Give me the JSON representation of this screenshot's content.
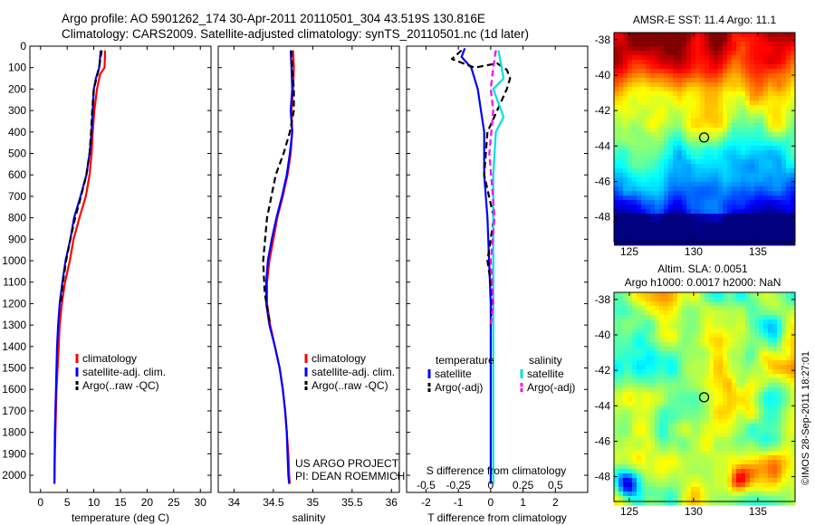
{
  "header": {
    "line1": "Argo profile: AO 5901262_174 30-Apr-2011 20110501_304 43.519S 130.816E",
    "line2": "Climatology: CARS2009. Satellite-adjusted climatology: synTS_20110501.nc (1d later)"
  },
  "credits": {
    "line1": "US ARGO PROJECT",
    "line2": "PI: DEAN ROEMMICH"
  },
  "watermark": "©IMOS 28-Sep-2011 18:27:01",
  "colors": {
    "climatology": "#ff0000",
    "satellite": "#0000ff",
    "argo": "#000000",
    "sal_satellite": "#00e0e0",
    "sal_argo": "#ff00ff"
  },
  "chart_data": [
    {
      "id": "temperature_profile",
      "type": "line",
      "xlabel": "temperature (deg C)",
      "xlim": [
        -2,
        32
      ],
      "ylim": [
        2080,
        0
      ],
      "xticks": [
        0,
        5,
        10,
        15,
        20,
        25,
        30
      ],
      "yticks": [
        0,
        100,
        200,
        300,
        400,
        500,
        600,
        700,
        800,
        900,
        1000,
        1100,
        1200,
        1300,
        1400,
        1500,
        1600,
        1700,
        1800,
        1900,
        2000
      ],
      "legend": [
        "climatology",
        "satellite-adj. clim.",
        "Argo(..raw -QC)"
      ],
      "series": [
        {
          "name": "climatology",
          "style": "solid",
          "color": "#ff0000",
          "x": [
            12.1,
            12.1,
            12.0,
            11.2,
            10.6,
            10.1,
            9.8,
            9.6,
            9.2,
            8.5,
            7.3,
            6.2,
            5.5,
            4.6,
            4.0,
            3.6,
            3.4,
            3.2,
            3.0,
            2.9,
            2.8,
            2.7,
            2.6
          ],
          "y": [
            20,
            50,
            100,
            130,
            200,
            300,
            400,
            500,
            600,
            700,
            800,
            900,
            1000,
            1100,
            1200,
            1300,
            1400,
            1500,
            1600,
            1700,
            1800,
            1900,
            2040
          ]
        },
        {
          "name": "satellite-adj. clim.",
          "style": "solid",
          "color": "#0000ff",
          "x": [
            11.3,
            11.2,
            11.0,
            10.4,
            10.0,
            9.8,
            9.6,
            9.2,
            8.6,
            7.5,
            6.3,
            5.6,
            4.7,
            4.1,
            3.6,
            3.3,
            3.1,
            3.0,
            2.9,
            2.8,
            2.7,
            2.6
          ],
          "y": [
            20,
            50,
            100,
            150,
            200,
            300,
            400,
            500,
            600,
            700,
            800,
            900,
            1000,
            1100,
            1200,
            1300,
            1400,
            1500,
            1600,
            1700,
            1800,
            2040
          ]
        },
        {
          "name": "Argo(..raw -QC)",
          "style": "dashed",
          "color": "#000000",
          "x": [
            11.5,
            11.3,
            11.0,
            10.5,
            10.0,
            9.7,
            9.5,
            9.2,
            8.6,
            7.6,
            6.5,
            5.6,
            4.8,
            4.2,
            3.8
          ],
          "y": [
            20,
            50,
            100,
            150,
            200,
            300,
            400,
            500,
            600,
            700,
            800,
            900,
            1000,
            1100,
            1200
          ]
        }
      ]
    },
    {
      "id": "salinity_profile",
      "type": "line",
      "xlabel": "salinity",
      "xlim": [
        33.8,
        36.1
      ],
      "ylim": [
        2080,
        0
      ],
      "xticks": [
        34,
        34.5,
        35,
        35.5,
        36
      ],
      "xticklabels": [
        "34",
        "34.5",
        "35",
        "35.5",
        "36"
      ],
      "legend": [
        "climatology",
        "satellite-adj. clim.",
        "Argo(..raw -QC)"
      ],
      "series": [
        {
          "name": "climatology",
          "style": "solid",
          "color": "#ff0000",
          "x": [
            34.75,
            34.76,
            34.75,
            34.73,
            34.74,
            34.72,
            34.68,
            34.62,
            34.55,
            34.5,
            34.45,
            34.42,
            34.42,
            34.46,
            34.52,
            34.58,
            34.62,
            34.65,
            34.67,
            34.69,
            34.7,
            34.71
          ],
          "y": [
            20,
            100,
            200,
            300,
            400,
            500,
            600,
            700,
            800,
            900,
            1000,
            1100,
            1200,
            1300,
            1400,
            1500,
            1600,
            1700,
            1800,
            1900,
            2000,
            2040
          ]
        },
        {
          "name": "satellite-adj. clim.",
          "style": "solid",
          "color": "#0000ff",
          "x": [
            34.72,
            34.73,
            34.74,
            34.72,
            34.74,
            34.71,
            34.67,
            34.61,
            34.54,
            34.48,
            34.43,
            34.41,
            34.41,
            34.45,
            34.52,
            34.58,
            34.62,
            34.65,
            34.67,
            34.68,
            34.69,
            34.7
          ],
          "y": [
            20,
            100,
            200,
            300,
            400,
            500,
            600,
            700,
            800,
            900,
            1000,
            1100,
            1200,
            1300,
            1400,
            1500,
            1600,
            1700,
            1800,
            1900,
            2000,
            2040
          ]
        },
        {
          "name": "Argo(..raw -QC)",
          "style": "dashed",
          "color": "#000000",
          "x": [
            34.73,
            34.73,
            34.74,
            34.76,
            34.76,
            34.71,
            34.63,
            34.53,
            34.42,
            34.37,
            34.39,
            34.46
          ],
          "y": [
            20,
            50,
            100,
            200,
            300,
            400,
            500,
            600,
            800,
            1000,
            1150,
            1300
          ]
        }
      ]
    },
    {
      "id": "difference_profile",
      "type": "line",
      "xlabel": "T difference from climatology",
      "xlabel_top": "S difference from climatology",
      "xlim": [
        -2.6,
        3.0
      ],
      "ylim": [
        2080,
        0
      ],
      "xticks": [
        -2,
        -1,
        0,
        1,
        2
      ],
      "xticks_top": [
        -0.5,
        -0.25,
        0,
        0.25,
        0.5
      ],
      "legend_left_title": "temperature",
      "legend_left": [
        "satellite",
        "Argo(-adj)"
      ],
      "legend_right_title": "salinity",
      "legend_right": [
        "satellite",
        "Argo(-adj)"
      ],
      "series": [
        {
          "name": "satellite",
          "group": "temperature",
          "style": "solid",
          "color": "#0000ff",
          "x": [
            -0.8,
            -0.9,
            -0.6,
            -0.4,
            -0.3,
            -0.2,
            -0.2,
            -0.1,
            -0.05,
            0,
            0,
            0
          ],
          "y": [
            10,
            50,
            100,
            200,
            300,
            400,
            600,
            800,
            1000,
            1200,
            1600,
            2040
          ]
        },
        {
          "name": "Argo(-adj)",
          "group": "temperature",
          "style": "dashed",
          "color": "#000000",
          "x": [
            -0.9,
            -1.2,
            -0.5,
            0.2,
            0.5,
            0.6,
            0.5,
            -0.1,
            -0.2,
            0.1,
            -0.1,
            0.05,
            0
          ],
          "y": [
            20,
            60,
            100,
            80,
            110,
            150,
            200,
            400,
            600,
            800,
            1000,
            1150,
            1300
          ]
        },
        {
          "name": "satellite",
          "group": "salinity",
          "style": "solid",
          "color": "#00e0e0",
          "x": [
            0.06,
            0.1,
            0.02,
            0.1,
            0.04,
            0.02,
            0.02,
            0.02,
            0.02,
            0.02
          ],
          "y": [
            20,
            150,
            200,
            330,
            400,
            600,
            800,
            1200,
            1600,
            2040
          ]
        },
        {
          "name": "Argo(-adj)",
          "group": "salinity",
          "style": "dashed",
          "color": "#ff00ff",
          "x": [
            0.04,
            0.02,
            0.0,
            0.02,
            -0.01,
            0.03,
            0.0,
            0.02,
            0.0
          ],
          "y": [
            20,
            100,
            200,
            300,
            500,
            800,
            1000,
            1200,
            1300
          ]
        }
      ]
    },
    {
      "id": "sst_map",
      "type": "heatmap",
      "title": "AMSR-E SST: 11.4 Argo: 11.1",
      "xlim": [
        123.8,
        137.9
      ],
      "ylim": [
        -49.4,
        -37.6
      ],
      "xticks": [
        125,
        130,
        135
      ],
      "yticks": [
        -38,
        -40,
        -42,
        -44,
        -46,
        -48
      ],
      "marker": {
        "lon": 130.816,
        "lat": -43.519
      }
    },
    {
      "id": "sla_map",
      "type": "heatmap",
      "title": "Altim. SLA: 0.0051",
      "subtitle": "Argo h1000: 0.0017 h2000: NaN",
      "xlim": [
        123.8,
        137.9
      ],
      "ylim": [
        -49.4,
        -37.6
      ],
      "xticks": [
        125,
        130,
        135
      ],
      "yticks": [
        -38,
        -40,
        -42,
        -44,
        -46,
        -48
      ],
      "marker": {
        "lon": 130.816,
        "lat": -43.519
      }
    }
  ]
}
